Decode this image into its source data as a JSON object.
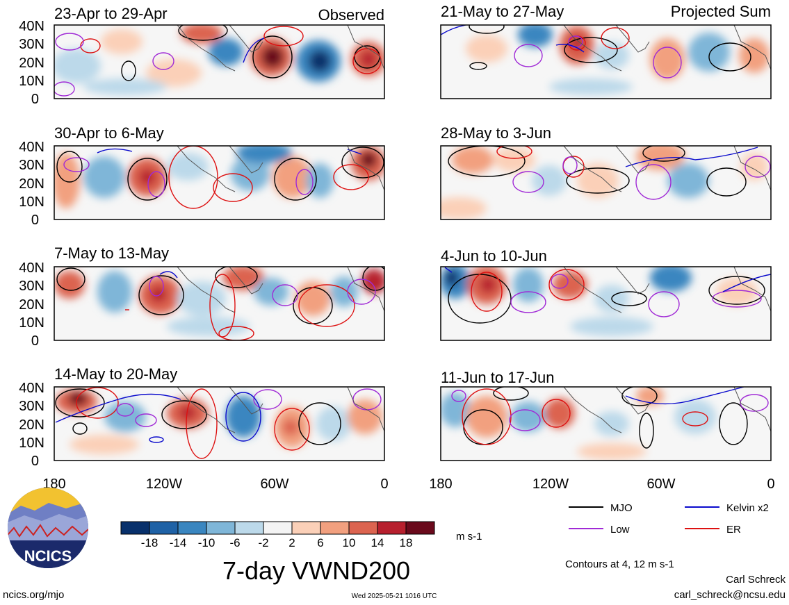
{
  "figure": {
    "title": "7-day VWND200",
    "observed_label": "Observed",
    "projected_label": "Projected Sum",
    "panels_left": [
      {
        "period": "23-Apr to 29-Apr"
      },
      {
        "period": "30-Apr to 6-May"
      },
      {
        "period": "7-May to 13-May"
      },
      {
        "period": "14-May to 20-May"
      }
    ],
    "panels_right": [
      {
        "period": "21-May to 27-May"
      },
      {
        "period": "28-May to 3-Jun"
      },
      {
        "period": "4-Jun to 10-Jun"
      },
      {
        "period": "11-Jun to 17-Jun"
      }
    ],
    "lat_ticks": [
      "40N",
      "30N",
      "20N",
      "10N",
      "0"
    ],
    "lon_ticks": [
      "180",
      "120W",
      "60W",
      "0"
    ],
    "colorbar": {
      "unit": "m s-1",
      "tick_labels": [
        "-18",
        "-14",
        "-10",
        "-6",
        "-2",
        "2",
        "6",
        "10",
        "14",
        "18"
      ],
      "colors": [
        "#08306b",
        "#1f62a6",
        "#3a86c0",
        "#7fb6d8",
        "#bcd9ea",
        "#f4f4f4",
        "#fbd0b8",
        "#f2a07f",
        "#dc6450",
        "#b7202e",
        "#6a0a1c"
      ]
    },
    "legend": [
      {
        "label": "MJO",
        "color": "#000000"
      },
      {
        "label": "Kelvin x2",
        "color": "#0a0acc"
      },
      {
        "label": "Low",
        "color": "#a02ad6"
      },
      {
        "label": "ER",
        "color": "#dd1111"
      }
    ],
    "contour_note": "Contours at 4, 12 m s-1",
    "logo_text": "NCICS",
    "url": "ncics.org/mjo",
    "timestamp": "Wed 2025-05-21 1016 UTC",
    "author": "Carl Schreck",
    "email": "carl_schreck@ncsu.edu"
  }
}
